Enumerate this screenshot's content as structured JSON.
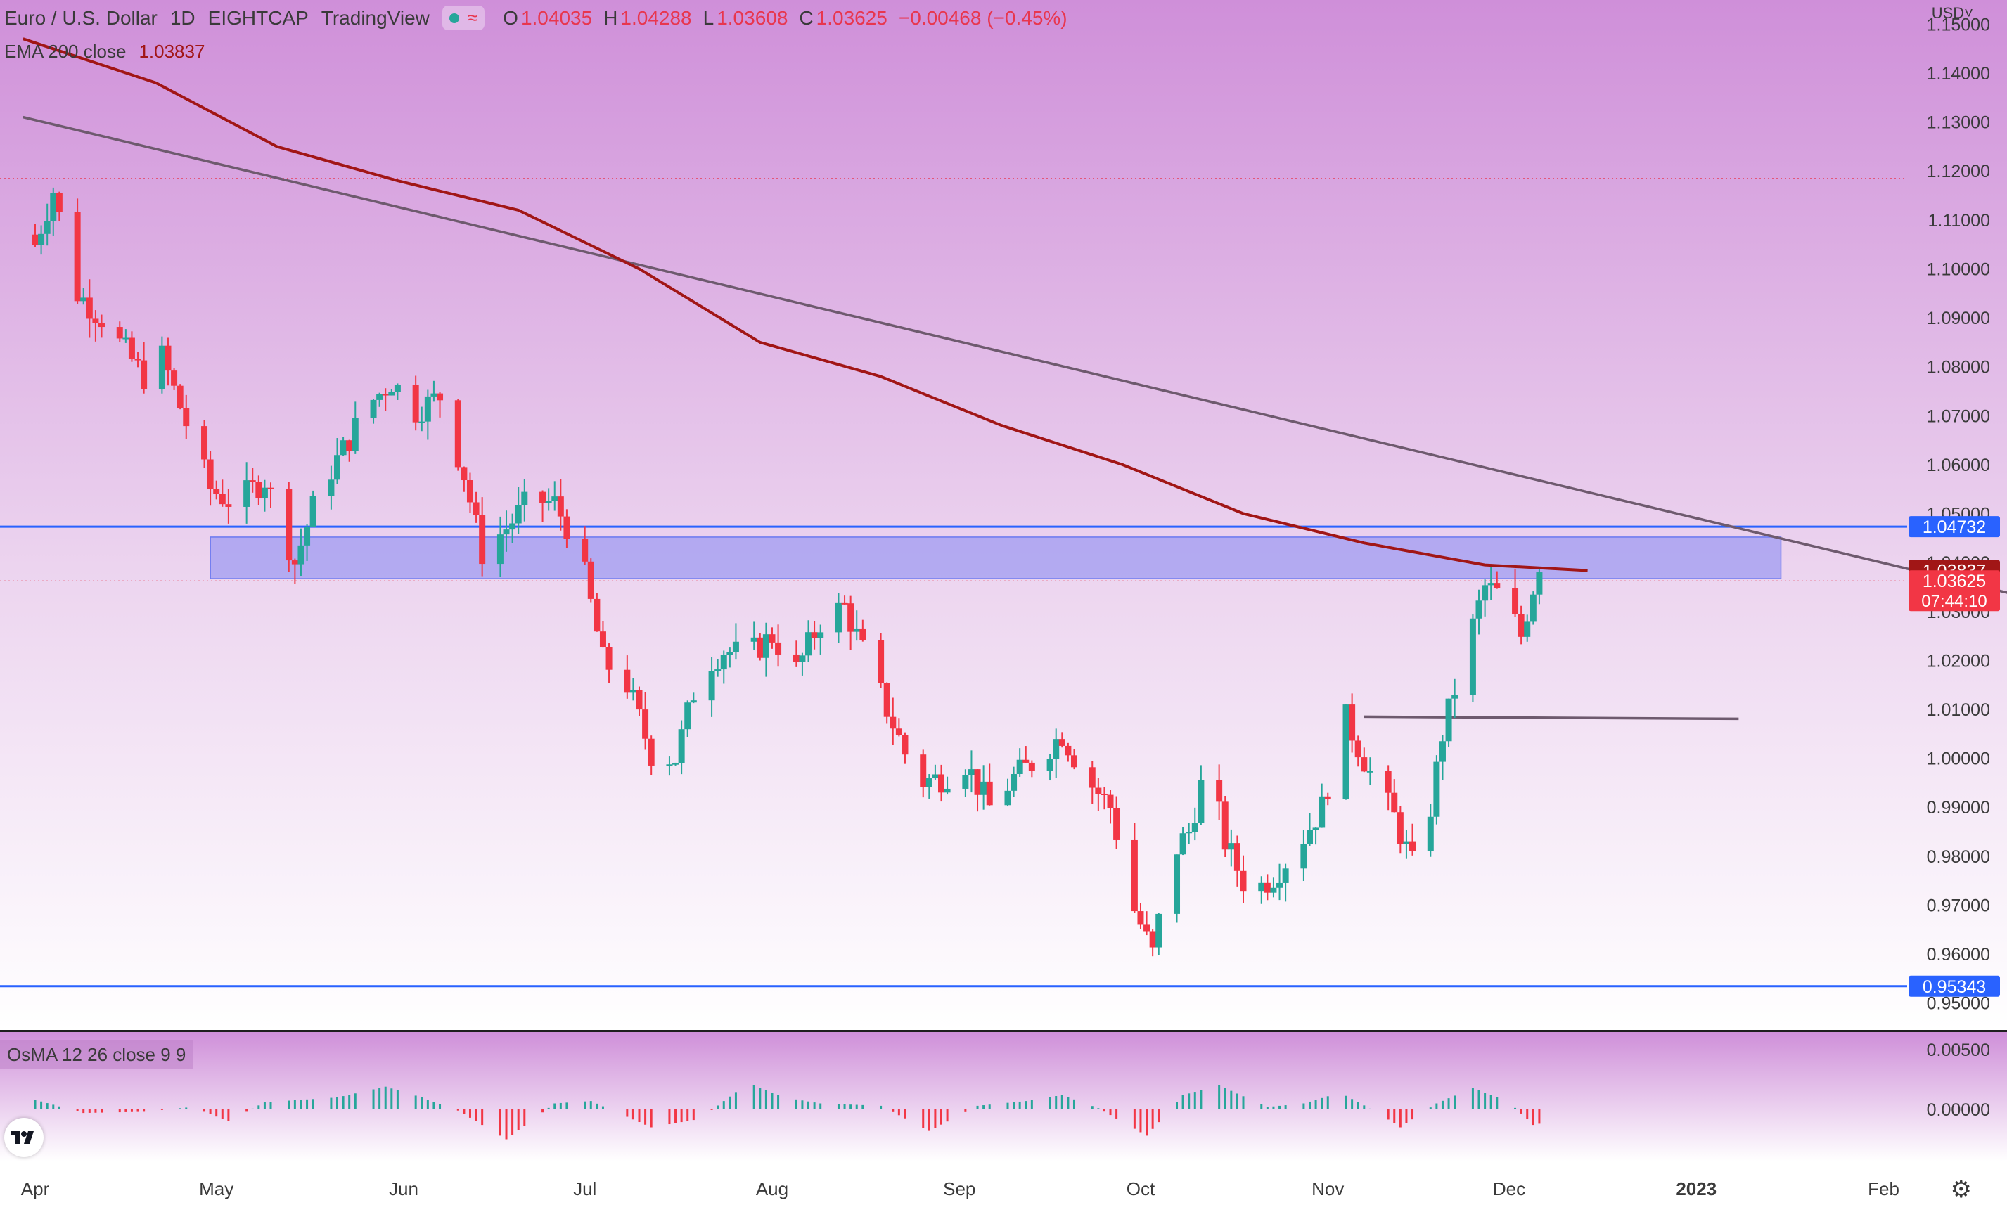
{
  "header": {
    "symbol": "Euro / U.S. Dollar",
    "interval": "1D",
    "broker": "EIGHTCAP",
    "platform": "TradingView",
    "ohlc": [
      {
        "label": "O",
        "value": "1.04035"
      },
      {
        "label": "H",
        "value": "1.04288"
      },
      {
        "label": "L",
        "value": "1.03608"
      },
      {
        "label": "C",
        "value": "1.03625"
      }
    ],
    "change": "−0.00468 (−0.45%)",
    "currency": "USD˅"
  },
  "ema_legend": {
    "label": "EMA 200 close",
    "value": "1.03837"
  },
  "osma_legend": "OsMA 12 26 close 9 9",
  "price_axis": {
    "ticks": [
      "1.15000",
      "1.14000",
      "1.13000",
      "1.12000",
      "1.11000",
      "1.10000",
      "1.09000",
      "1.08000",
      "1.07000",
      "1.06000",
      "1.05000",
      "1.04000",
      "1.03000",
      "1.02000",
      "1.01000",
      "1.00000",
      "0.99000",
      "0.98000",
      "0.97000",
      "0.96000",
      "0.95000"
    ],
    "tick_values": [
      1.15,
      1.14,
      1.13,
      1.12,
      1.11,
      1.1,
      1.09,
      1.08,
      1.07,
      1.06,
      1.05,
      1.04,
      1.03,
      1.02,
      1.01,
      1.0,
      0.99,
      0.98,
      0.97,
      0.96,
      0.95
    ],
    "badges": [
      {
        "text": "1.04732",
        "value": 1.04732,
        "color": "#2962ff"
      },
      {
        "text": "1.03837",
        "value": 1.03837,
        "color": "#a11616"
      },
      {
        "text": "1.03625",
        "value": 1.03625,
        "color": "#f23645",
        "subtext": "07:44:10"
      },
      {
        "text": "0.95343",
        "value": 0.95343,
        "color": "#2962ff"
      }
    ]
  },
  "osma_axis": {
    "ticks": [
      "0.00500",
      "0.00000"
    ],
    "tick_values": [
      0.005,
      0.0
    ]
  },
  "time_axis": {
    "labels": [
      "Apr",
      "May",
      "Jun",
      "Jul",
      "Aug",
      "Sep",
      "Oct",
      "Nov",
      "Dec",
      "2023",
      "Feb"
    ],
    "label_day_index": [
      0,
      30,
      61,
      91,
      122,
      153,
      183,
      214,
      244,
      275,
      306
    ]
  },
  "chart_data": {
    "type": "candlestick",
    "title": "Euro / U.S. Dollar",
    "interval": "1D",
    "ylim": [
      0.9455,
      1.1535
    ],
    "close_series_by_day": [
      {
        "day": 0,
        "close": 1.105
      },
      {
        "day": 3,
        "close": 1.116
      },
      {
        "day": 7,
        "close": 1.095
      },
      {
        "day": 11,
        "close": 1.09
      },
      {
        "day": 15,
        "close": 1.083
      },
      {
        "day": 18,
        "close": 1.078
      },
      {
        "day": 21,
        "close": 1.082
      },
      {
        "day": 26,
        "close": 1.065
      },
      {
        "day": 29,
        "close": 1.055
      },
      {
        "day": 33,
        "close": 1.052
      },
      {
        "day": 38,
        "close": 1.057
      },
      {
        "day": 43,
        "close": 1.04
      },
      {
        "day": 47,
        "close": 1.055
      },
      {
        "day": 51,
        "close": 1.063
      },
      {
        "day": 55,
        "close": 1.072
      },
      {
        "day": 59,
        "close": 1.077
      },
      {
        "day": 63,
        "close": 1.071
      },
      {
        "day": 67,
        "close": 1.074
      },
      {
        "day": 71,
        "close": 1.058
      },
      {
        "day": 74,
        "close": 1.042
      },
      {
        "day": 78,
        "close": 1.047
      },
      {
        "day": 82,
        "close": 1.053
      },
      {
        "day": 86,
        "close": 1.052
      },
      {
        "day": 90,
        "close": 1.043
      },
      {
        "day": 94,
        "close": 1.02
      },
      {
        "day": 98,
        "close": 1.015
      },
      {
        "day": 102,
        "close": 1.001
      },
      {
        "day": 106,
        "close": 1.0
      },
      {
        "day": 110,
        "close": 1.018
      },
      {
        "day": 114,
        "close": 1.022
      },
      {
        "day": 118,
        "close": 1.021
      },
      {
        "day": 122,
        "close": 1.025
      },
      {
        "day": 126,
        "close": 1.018
      },
      {
        "day": 130,
        "close": 1.028
      },
      {
        "day": 134,
        "close": 1.031
      },
      {
        "day": 138,
        "close": 1.019
      },
      {
        "day": 142,
        "close": 1.007
      },
      {
        "day": 146,
        "close": 0.995
      },
      {
        "day": 150,
        "close": 0.996
      },
      {
        "day": 154,
        "close": 0.999
      },
      {
        "day": 158,
        "close": 0.99
      },
      {
        "day": 162,
        "close": 0.996
      },
      {
        "day": 166,
        "close": 1.0
      },
      {
        "day": 170,
        "close": 1.005
      },
      {
        "day": 174,
        "close": 0.996
      },
      {
        "day": 178,
        "close": 0.99
      },
      {
        "day": 182,
        "close": 0.969
      },
      {
        "day": 185,
        "close": 0.96
      },
      {
        "day": 188,
        "close": 0.98
      },
      {
        "day": 191,
        "close": 0.985
      },
      {
        "day": 194,
        "close": 0.999
      },
      {
        "day": 197,
        "close": 0.983
      },
      {
        "day": 201,
        "close": 0.972
      },
      {
        "day": 205,
        "close": 0.976
      },
      {
        "day": 209,
        "close": 0.982
      },
      {
        "day": 213,
        "close": 0.99
      },
      {
        "day": 217,
        "close": 1.008
      },
      {
        "day": 221,
        "close": 0.997
      },
      {
        "day": 225,
        "close": 0.988
      },
      {
        "day": 229,
        "close": 0.975
      },
      {
        "day": 233,
        "close": 1.005
      },
      {
        "day": 237,
        "close": 1.023
      },
      {
        "day": 240,
        "close": 1.035
      },
      {
        "day": 243,
        "close": 1.033
      },
      {
        "day": 246,
        "close": 1.025
      },
      {
        "day": 249,
        "close": 1.04
      },
      {
        "day": 251,
        "close": 1.0363
      }
    ],
    "last_candle": {
      "open": 1.04035,
      "high": 1.04288,
      "low": 1.03608,
      "close": 1.03625
    },
    "ema200": {
      "name": "EMA 200 close",
      "points": [
        {
          "day": -2,
          "value": 1.147
        },
        {
          "day": 20,
          "value": 1.138
        },
        {
          "day": 40,
          "value": 1.125
        },
        {
          "day": 60,
          "value": 1.118
        },
        {
          "day": 80,
          "value": 1.112
        },
        {
          "day": 100,
          "value": 1.1
        },
        {
          "day": 120,
          "value": 1.085
        },
        {
          "day": 140,
          "value": 1.078
        },
        {
          "day": 160,
          "value": 1.068
        },
        {
          "day": 180,
          "value": 1.06
        },
        {
          "day": 200,
          "value": 1.05
        },
        {
          "day": 220,
          "value": 1.044
        },
        {
          "day": 240,
          "value": 1.0395
        },
        {
          "day": 257,
          "value": 1.03837
        }
      ]
    },
    "trendline": {
      "start": {
        "day": -2,
        "value": 1.131
      },
      "end": {
        "day": 331,
        "value": 1.0325
      }
    },
    "horizontal_lines": [
      {
        "value": 1.04732,
        "color": "#2962ff"
      },
      {
        "value": 0.95343,
        "color": "#2962ff"
      }
    ],
    "resistance_ray": {
      "value": 1.0085,
      "from_day": 220,
      "to_day": 282
    },
    "zone": {
      "from": 1.0367,
      "to": 1.0452,
      "from_day": 29,
      "to_day": 289
    },
    "dotted_levels": [
      1.1185,
      1.03625
    ],
    "osma": {
      "name": "OsMA 12 26 close 9 9",
      "points": [
        {
          "day": 0,
          "value": 0.0008
        },
        {
          "day": 8,
          "value": -0.0003
        },
        {
          "day": 18,
          "value": -0.0002
        },
        {
          "day": 26,
          "value": 0.0002
        },
        {
          "day": 32,
          "value": -0.001
        },
        {
          "day": 38,
          "value": 0.0006
        },
        {
          "day": 44,
          "value": 0.0008
        },
        {
          "day": 50,
          "value": 0.001
        },
        {
          "day": 58,
          "value": 0.0019
        },
        {
          "day": 64,
          "value": 0.001
        },
        {
          "day": 70,
          "value": -0.0001
        },
        {
          "day": 78,
          "value": -0.0025
        },
        {
          "day": 86,
          "value": 0.0005
        },
        {
          "day": 92,
          "value": 0.0007
        },
        {
          "day": 102,
          "value": -0.0015
        },
        {
          "day": 110,
          "value": -0.0008
        },
        {
          "day": 118,
          "value": 0.0022
        },
        {
          "day": 124,
          "value": 0.001
        },
        {
          "day": 130,
          "value": 0.0005
        },
        {
          "day": 140,
          "value": 0.0003
        },
        {
          "day": 148,
          "value": -0.0018
        },
        {
          "day": 156,
          "value": 0.0003
        },
        {
          "day": 164,
          "value": 0.0007
        },
        {
          "day": 170,
          "value": 0.0012
        },
        {
          "day": 176,
          "value": 0.0001
        },
        {
          "day": 184,
          "value": -0.0022
        },
        {
          "day": 190,
          "value": 0.0012
        },
        {
          "day": 196,
          "value": 0.002
        },
        {
          "day": 204,
          "value": 0.0002
        },
        {
          "day": 210,
          "value": 0.0005
        },
        {
          "day": 216,
          "value": 0.0014
        },
        {
          "day": 222,
          "value": -0.0002
        },
        {
          "day": 226,
          "value": -0.0015
        },
        {
          "day": 232,
          "value": 0.0005
        },
        {
          "day": 238,
          "value": 0.0018
        },
        {
          "day": 244,
          "value": 0.0006
        },
        {
          "day": 248,
          "value": -0.0013
        },
        {
          "day": 251,
          "value": -0.001
        }
      ]
    }
  },
  "icons": {
    "logo": "tradingview-logo-icon",
    "settings": "gear-icon"
  }
}
